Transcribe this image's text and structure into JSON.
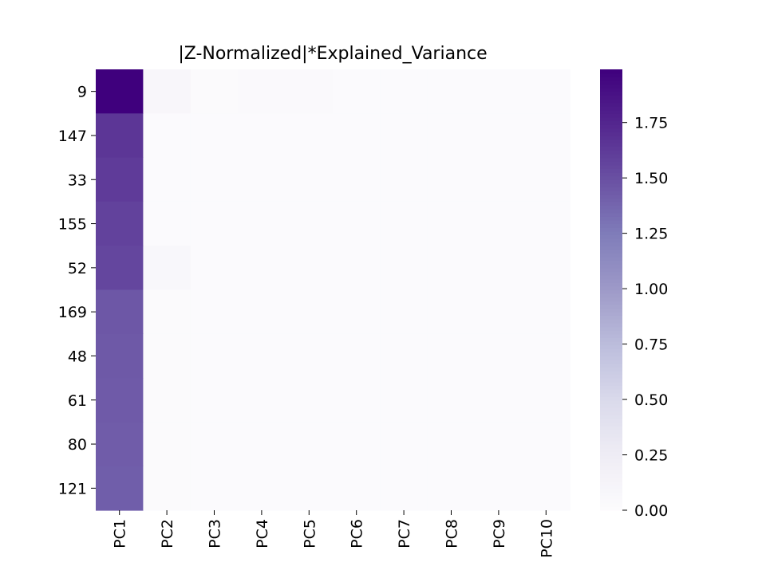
{
  "chart_data": {
    "type": "heatmap",
    "title": "|Z-Normalized|*Explained_Variance",
    "rows": [
      "9",
      "147",
      "33",
      "155",
      "52",
      "169",
      "48",
      "61",
      "80",
      "121"
    ],
    "columns": [
      "PC1",
      "PC2",
      "PC3",
      "PC4",
      "PC5",
      "PC6",
      "PC7",
      "PC8",
      "PC9",
      "PC10"
    ],
    "values": [
      [
        1.99,
        0.08,
        0.02,
        0.03,
        0.03,
        0.01,
        0.01,
        0.01,
        0.01,
        0.01
      ],
      [
        1.65,
        0.01,
        0.01,
        0.01,
        0.01,
        0.01,
        0.01,
        0.01,
        0.01,
        0.01
      ],
      [
        1.62,
        0.01,
        0.01,
        0.01,
        0.01,
        0.01,
        0.01,
        0.01,
        0.01,
        0.01
      ],
      [
        1.58,
        0.01,
        0.01,
        0.01,
        0.01,
        0.01,
        0.01,
        0.01,
        0.01,
        0.01
      ],
      [
        1.56,
        0.07,
        0.01,
        0.01,
        0.01,
        0.01,
        0.01,
        0.01,
        0.01,
        0.01
      ],
      [
        1.46,
        0.02,
        0.01,
        0.01,
        0.01,
        0.01,
        0.01,
        0.01,
        0.01,
        0.01
      ],
      [
        1.45,
        0.02,
        0.01,
        0.01,
        0.01,
        0.01,
        0.01,
        0.01,
        0.01,
        0.01
      ],
      [
        1.44,
        0.02,
        0.01,
        0.01,
        0.01,
        0.01,
        0.01,
        0.01,
        0.01,
        0.01
      ],
      [
        1.43,
        0.02,
        0.01,
        0.01,
        0.01,
        0.01,
        0.01,
        0.01,
        0.01,
        0.01
      ],
      [
        1.42,
        0.02,
        0.01,
        0.01,
        0.01,
        0.01,
        0.01,
        0.01,
        0.01,
        0.01
      ]
    ],
    "colorbar": {
      "min": 0.0,
      "max": 1.99,
      "ticks": [
        0.0,
        0.25,
        0.5,
        0.75,
        1.0,
        1.25,
        1.5,
        1.75
      ],
      "tick_labels": [
        "0.00",
        "0.25",
        "0.50",
        "0.75",
        "1.00",
        "1.25",
        "1.50",
        "1.75"
      ],
      "colormap": "Purples",
      "color_low": "#fcfbfd",
      "color_high": "#3f007d"
    },
    "xlabel": "",
    "ylabel": ""
  }
}
